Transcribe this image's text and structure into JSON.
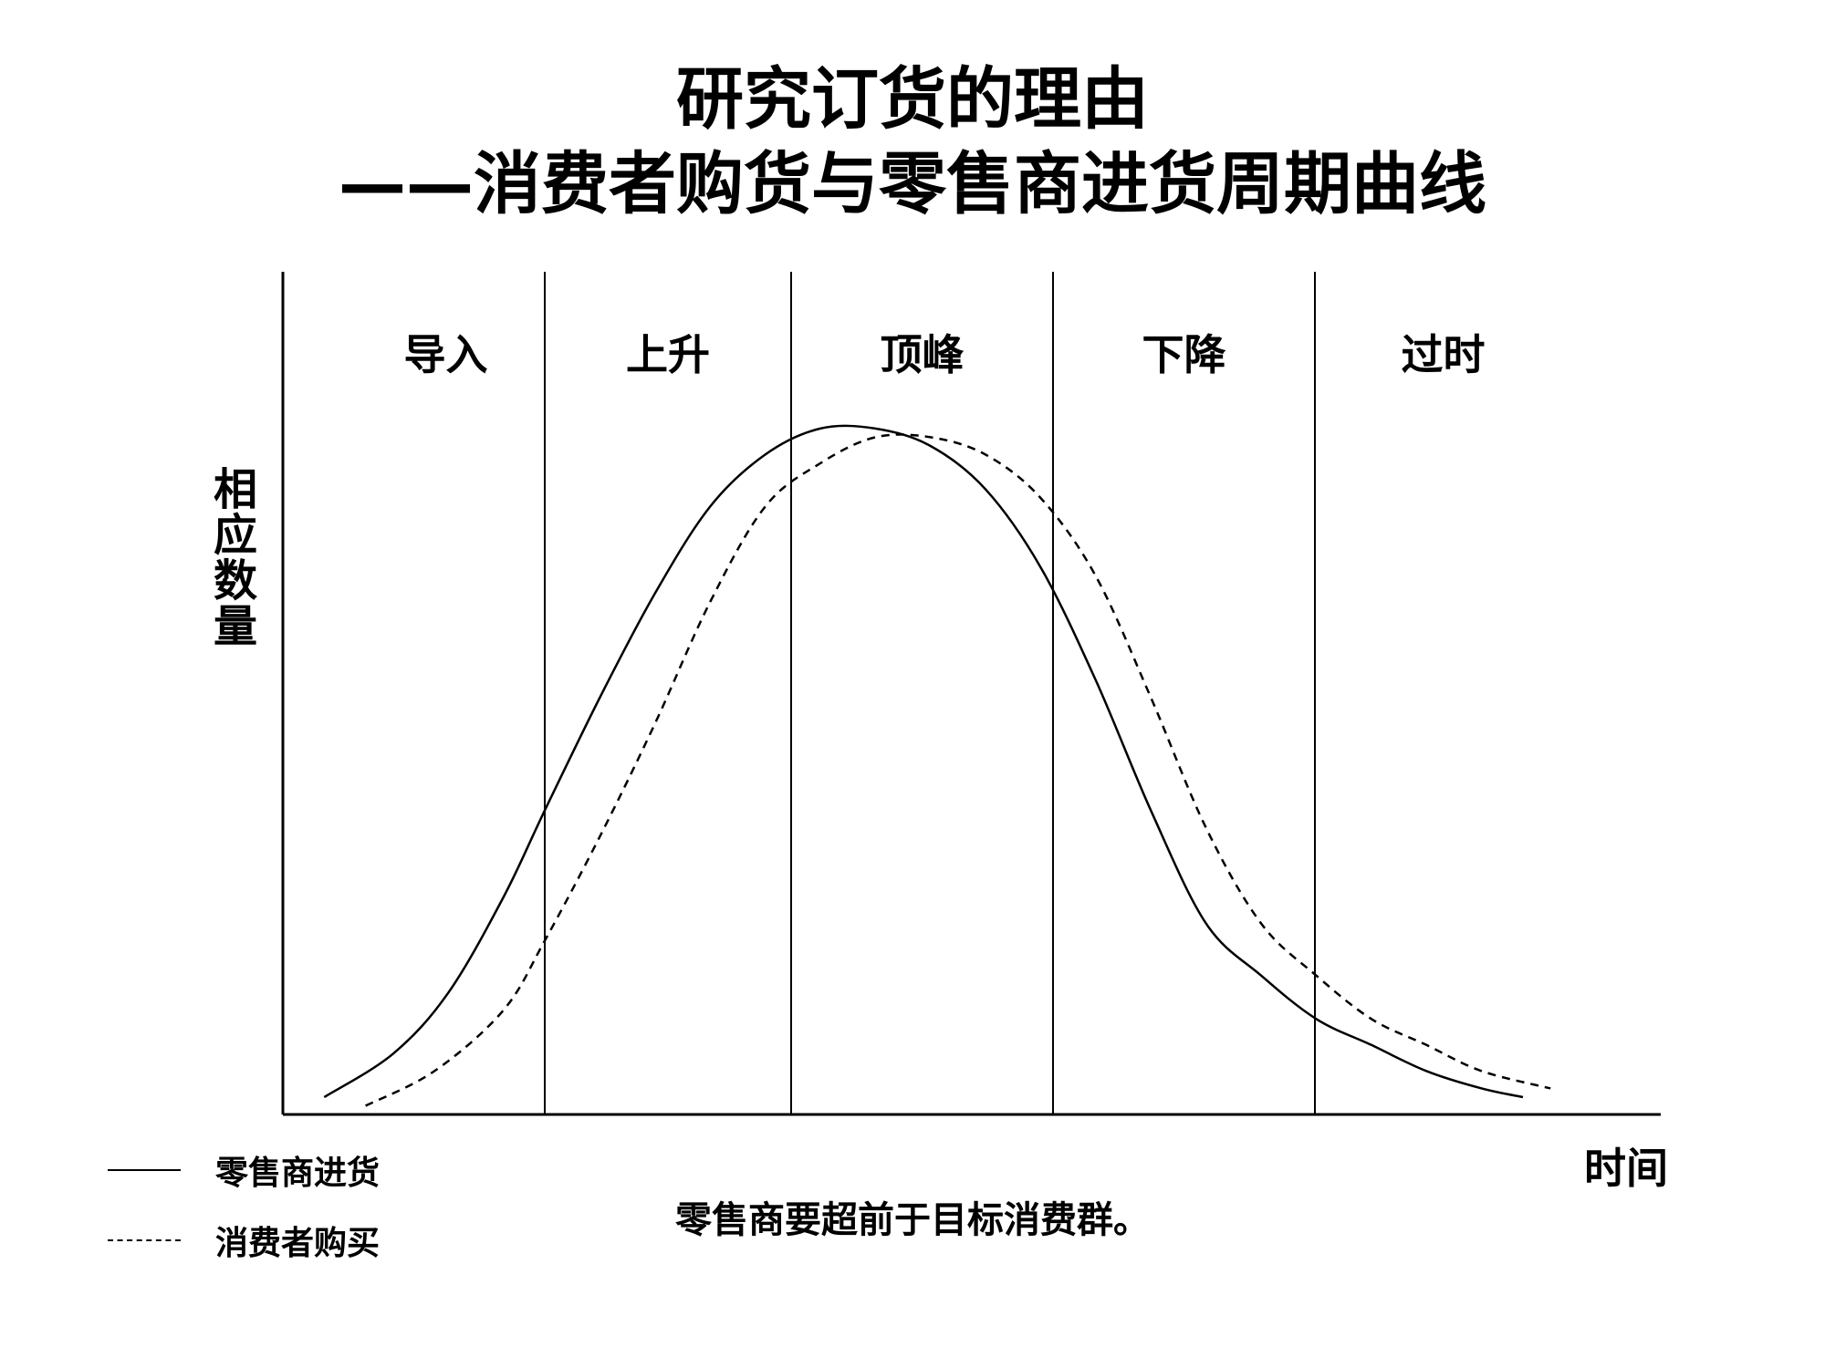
{
  "title": {
    "line1": "研究订货的理由",
    "line2": "——消费者购货与零售商进货周期曲线"
  },
  "chart_data": {
    "type": "line",
    "xlabel": "时间",
    "ylabel": "相应数量",
    "stages": [
      "导入",
      "上升",
      "顶峰",
      "下降",
      "过时"
    ],
    "grid": false,
    "legend_position": "bottom-left",
    "series": [
      {
        "name": "零售商进货",
        "style": "solid",
        "x": [
          0.03,
          0.08,
          0.12,
          0.16,
          0.19,
          0.23,
          0.27,
          0.31,
          0.35,
          0.39,
          0.43,
          0.47,
          0.51,
          0.55,
          0.59,
          0.63,
          0.67,
          0.71,
          0.75,
          0.79,
          0.83,
          0.87,
          0.9
        ],
        "y": [
          0.02,
          0.07,
          0.14,
          0.25,
          0.35,
          0.48,
          0.6,
          0.7,
          0.76,
          0.79,
          0.79,
          0.77,
          0.72,
          0.63,
          0.5,
          0.35,
          0.22,
          0.16,
          0.11,
          0.08,
          0.05,
          0.03,
          0.02
        ]
      },
      {
        "name": "消费者购买",
        "style": "dashed",
        "x": [
          0.06,
          0.11,
          0.16,
          0.19,
          0.23,
          0.27,
          0.31,
          0.35,
          0.39,
          0.43,
          0.47,
          0.51,
          0.55,
          0.59,
          0.63,
          0.67,
          0.71,
          0.75,
          0.79,
          0.83,
          0.87,
          0.92
        ],
        "y": [
          0.01,
          0.05,
          0.12,
          0.2,
          0.32,
          0.45,
          0.59,
          0.7,
          0.75,
          0.78,
          0.78,
          0.76,
          0.71,
          0.62,
          0.48,
          0.33,
          0.22,
          0.16,
          0.11,
          0.08,
          0.05,
          0.03
        ]
      }
    ]
  },
  "legend": {
    "solid_label": "零售商进货",
    "dashed_label": "消费者购买"
  },
  "caption": "零售商要超前于目标消费群。"
}
